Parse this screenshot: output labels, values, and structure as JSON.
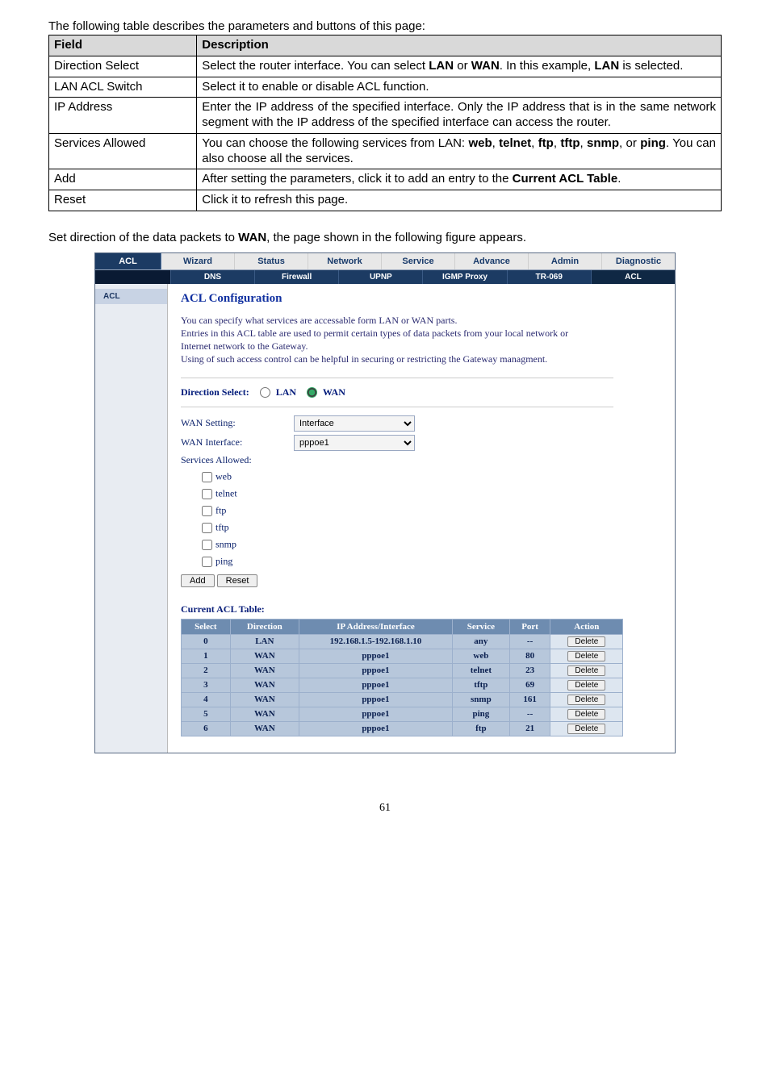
{
  "intro": "The following table describes the parameters and buttons of this page:",
  "param_headers": {
    "field": "Field",
    "desc": "Description"
  },
  "param_rows": [
    {
      "field": "Direction Select",
      "desc_parts": [
        "Select the router interface. You can select ",
        "LAN",
        " or ",
        "WAN",
        ". In this example, ",
        "LAN",
        " is selected."
      ]
    },
    {
      "field": "LAN ACL Switch",
      "desc": "Select it to enable or disable ACL function."
    },
    {
      "field": "IP Address",
      "desc": "Enter the IP address of the specified interface. Only the IP address that is in the same network segment with the IP address of the specified interface can access the router."
    },
    {
      "field": "Services Allowed",
      "desc_parts": [
        "You can choose the following services from LAN: ",
        "web",
        ", ",
        "telnet",
        ", ",
        "ftp",
        ", ",
        "tftp",
        ", ",
        "snmp",
        ", or ",
        "ping",
        ". You can also choose all the services."
      ]
    },
    {
      "field": "Add",
      "desc_parts": [
        "After setting the parameters, click it to add an entry to the ",
        "Current ACL Table",
        "."
      ]
    },
    {
      "field": "Reset",
      "desc": "Click it to refresh this page."
    }
  ],
  "body_text_parts": [
    "Set direction of the data packets to ",
    "WAN",
    ", the page shown in the following figure appears."
  ],
  "nav_top": {
    "items": [
      "Wizard",
      "Status",
      "Network",
      "Service",
      "Advance",
      "Admin",
      "Diagnostic"
    ],
    "left_label": "ACL",
    "left_bg": "#1c3b63"
  },
  "nav_sub": {
    "items": [
      "DNS",
      "Firewall",
      "UPNP",
      "IGMP Proxy",
      "TR-069",
      "ACL"
    ],
    "active": "ACL"
  },
  "sidebar_item": "ACL",
  "cfg": {
    "title": "ACL Configuration",
    "help1": "You can specify what services are accessable form LAN or WAN parts.",
    "help2": "Entries in this ACL table are used to permit certain types of data packets from your local network or Internet network to the Gateway.",
    "help3": "Using of such access control can be helpful in securing or restricting the Gateway managment.",
    "dir_label": "Direction Select:",
    "dir_lan": "LAN",
    "dir_wan": "WAN",
    "wan_setting_label": "WAN Setting:",
    "wan_setting_value": "Interface",
    "wan_iface_label": "WAN Interface:",
    "wan_iface_value": "pppoe1",
    "services_label": "Services Allowed:",
    "services": [
      "web",
      "telnet",
      "ftp",
      "tftp",
      "snmp",
      "ping"
    ],
    "btn_add": "Add",
    "btn_reset": "Reset"
  },
  "acl_table": {
    "title": "Current ACL Table:",
    "headers": [
      "Select",
      "Direction",
      "IP Address/Interface",
      "Service",
      "Port",
      "Action"
    ],
    "rows": [
      {
        "select": "0",
        "dir": "LAN",
        "ip": "192.168.1.5-192.168.1.10",
        "svc": "any",
        "port": "--",
        "action": "Delete"
      },
      {
        "select": "1",
        "dir": "WAN",
        "ip": "pppoe1",
        "svc": "web",
        "port": "80",
        "action": "Delete"
      },
      {
        "select": "2",
        "dir": "WAN",
        "ip": "pppoe1",
        "svc": "telnet",
        "port": "23",
        "action": "Delete"
      },
      {
        "select": "3",
        "dir": "WAN",
        "ip": "pppoe1",
        "svc": "tftp",
        "port": "69",
        "action": "Delete"
      },
      {
        "select": "4",
        "dir": "WAN",
        "ip": "pppoe1",
        "svc": "snmp",
        "port": "161",
        "action": "Delete"
      },
      {
        "select": "5",
        "dir": "WAN",
        "ip": "pppoe1",
        "svc": "ping",
        "port": "--",
        "action": "Delete"
      },
      {
        "select": "6",
        "dir": "WAN",
        "ip": "pppoe1",
        "svc": "ftp",
        "port": "21",
        "action": "Delete"
      }
    ]
  },
  "page_number": "61"
}
